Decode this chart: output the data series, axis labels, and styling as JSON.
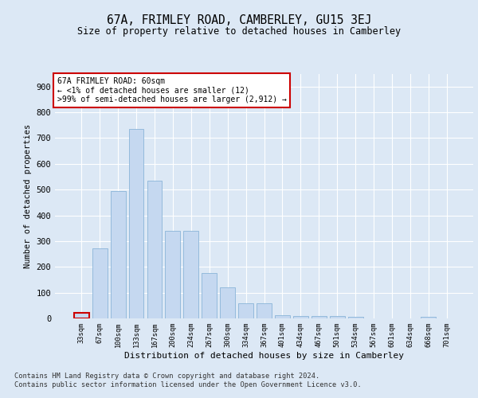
{
  "title1": "67A, FRIMLEY ROAD, CAMBERLEY, GU15 3EJ",
  "title2": "Size of property relative to detached houses in Camberley",
  "xlabel": "Distribution of detached houses by size in Camberley",
  "ylabel": "Number of detached properties",
  "categories": [
    "33sqm",
    "67sqm",
    "100sqm",
    "133sqm",
    "167sqm",
    "200sqm",
    "234sqm",
    "267sqm",
    "300sqm",
    "334sqm",
    "367sqm",
    "401sqm",
    "434sqm",
    "467sqm",
    "501sqm",
    "534sqm",
    "567sqm",
    "601sqm",
    "634sqm",
    "668sqm",
    "701sqm"
  ],
  "values": [
    22,
    272,
    495,
    735,
    535,
    340,
    340,
    175,
    120,
    60,
    60,
    12,
    10,
    10,
    10,
    5,
    0,
    0,
    0,
    5,
    0
  ],
  "bar_color": "#c5d8f0",
  "bar_edge_color": "#8ab4d8",
  "highlight_bar_index": 0,
  "highlight_edge_color": "#cc0000",
  "annotation_title": "67A FRIMLEY ROAD: 60sqm",
  "annotation_line1": "← <1% of detached houses are smaller (12)",
  "annotation_line2": ">99% of semi-detached houses are larger (2,912) →",
  "annotation_box_color": "#ffffff",
  "annotation_box_edge": "#cc0000",
  "ylim": [
    0,
    950
  ],
  "yticks": [
    0,
    100,
    200,
    300,
    400,
    500,
    600,
    700,
    800,
    900
  ],
  "footer": "Contains HM Land Registry data © Crown copyright and database right 2024.\nContains public sector information licensed under the Open Government Licence v3.0.",
  "bg_color": "#dce8f5",
  "plot_bg_color": "#dce8f5",
  "grid_color": "#ffffff",
  "title1_fontsize": 10.5,
  "title2_fontsize": 8.5
}
